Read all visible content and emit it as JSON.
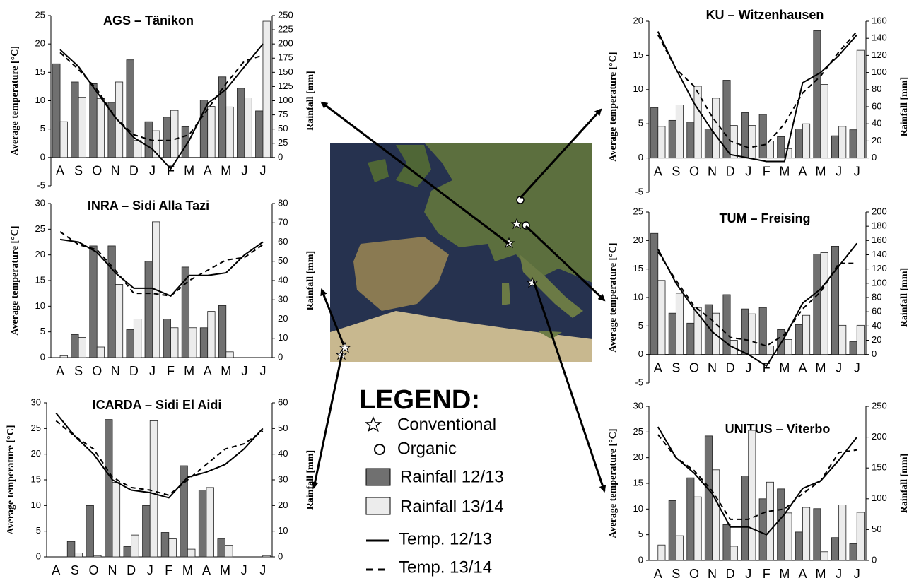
{
  "chart_data": [
    {
      "type": "combo",
      "title": "AGS – Tänikon",
      "ylabel": "Average temperature [°C]",
      "y2label": "Rainfall [mm]",
      "categories": [
        "A",
        "S",
        "O",
        "N",
        "D",
        "J",
        "F",
        "M",
        "A",
        "M",
        "J",
        "J"
      ],
      "ylim": [
        -5,
        25
      ],
      "yticks": [
        -5,
        0,
        5,
        10,
        15,
        20,
        25
      ],
      "y2lim": [
        -50,
        250
      ],
      "y2ticks": [
        0,
        25,
        50,
        75,
        100,
        125,
        150,
        175,
        200,
        225,
        250
      ],
      "series": [
        {
          "color": "#707070",
          "style": "bar",
          "axis": "y2",
          "values": [
            165,
            133,
            130,
            97,
            172,
            63,
            71,
            54,
            101,
            142,
            122,
            82
          ]
        },
        {
          "color": "#ececec",
          "style": "bar",
          "axis": "y2",
          "values": [
            63,
            106,
            104,
            133,
            30,
            47,
            83,
            0,
            90,
            89,
            105,
            240
          ]
        },
        {
          "color": "#000000",
          "style": "solid",
          "values": [
            19,
            16,
            11.5,
            7,
            3.5,
            1.5,
            -2,
            3,
            9.5,
            12,
            16,
            20
          ]
        },
        {
          "color": "#000000",
          "style": "dashed",
          "values": [
            18.5,
            15.5,
            12,
            7,
            4,
            3,
            3,
            4,
            8.5,
            13,
            17,
            18
          ]
        }
      ]
    },
    {
      "type": "combo",
      "title": "INRA – Sidi Alla Tazi",
      "ylabel": "Average temperature [°C]",
      "y2label": "Rainfall [mm]",
      "categories": [
        "A",
        "S",
        "O",
        "N",
        "D",
        "J",
        "F",
        "M",
        "A",
        "M",
        "J",
        "J"
      ],
      "ylim": [
        0,
        30
      ],
      "yticks": [
        0,
        5,
        10,
        15,
        20,
        25,
        30
      ],
      "y2lim": [
        0,
        80
      ],
      "y2ticks": [
        0,
        10,
        20,
        30,
        40,
        50,
        60,
        70,
        80
      ],
      "series": [
        {
          "color": "#707070",
          "style": "bar",
          "axis": "y2",
          "values": [
            0,
            12,
            58,
            58,
            14.5,
            50,
            20,
            47,
            15.5,
            27,
            0,
            0
          ]
        },
        {
          "color": "#ececec",
          "style": "bar",
          "axis": "y2",
          "values": [
            1,
            10.5,
            5.5,
            38,
            20,
            70.5,
            15.5,
            15.5,
            24,
            3,
            0,
            0
          ]
        },
        {
          "color": "#000000",
          "style": "solid",
          "values": [
            23,
            22.5,
            20.5,
            16.5,
            13.5,
            13.5,
            12,
            16,
            16,
            16.5,
            20,
            22.5
          ]
        },
        {
          "color": "#000000",
          "style": "dashed",
          "values": [
            24.5,
            22,
            21,
            17,
            12.5,
            12.5,
            12,
            15,
            17,
            19,
            19.5,
            22
          ]
        }
      ]
    },
    {
      "type": "combo",
      "title": "ICARDA – Sidi El Aidi",
      "ylabel": "Average temperature [°C]",
      "y2label": "Rainfall [mm]",
      "categories": [
        "A",
        "S",
        "O",
        "N",
        "D",
        "J",
        "F",
        "M",
        "A",
        "M",
        "J",
        "J"
      ],
      "ylim": [
        0,
        30
      ],
      "yticks": [
        0,
        5,
        10,
        15,
        20,
        25,
        30
      ],
      "y2lim": [
        0,
        60
      ],
      "y2ticks": [
        0,
        10,
        20,
        30,
        40,
        50,
        60
      ],
      "series": [
        {
          "color": "#707070",
          "style": "bar",
          "axis": "y2",
          "values": [
            0,
            6,
            20,
            53.5,
            4,
            20,
            9.5,
            35.5,
            26,
            7,
            0,
            0
          ]
        },
        {
          "color": "#ececec",
          "style": "bar",
          "axis": "y2",
          "values": [
            0,
            1.5,
            0.5,
            29,
            8.5,
            53,
            7,
            3,
            27,
            4.5,
            0,
            0.5
          ]
        },
        {
          "color": "#000000",
          "style": "solid",
          "values": [
            28,
            23.5,
            20,
            15,
            13,
            12.5,
            11.5,
            15.5,
            16.5,
            18,
            21,
            25
          ]
        },
        {
          "color": "#000000",
          "style": "dashed",
          "values": [
            26.5,
            23.5,
            21,
            15.5,
            13.5,
            13,
            12,
            15,
            18,
            21,
            22,
            24.5
          ]
        }
      ]
    },
    {
      "type": "combo",
      "title": "KU – Witzenhausen",
      "ylabel": "Average temperature [°C]",
      "y2label": "Rainfall [mm]",
      "categories": [
        "A",
        "S",
        "O",
        "N",
        "D",
        "J",
        "F",
        "M",
        "A",
        "M",
        "J",
        "J"
      ],
      "ylim": [
        -5,
        20
      ],
      "yticks": [
        -5,
        0,
        5,
        10,
        15,
        20
      ],
      "y2lim": [
        -40,
        160
      ],
      "y2ticks": [
        0,
        20,
        40,
        60,
        80,
        100,
        120,
        140,
        160
      ],
      "series": [
        {
          "color": "#707070",
          "style": "bar",
          "axis": "y2",
          "values": [
            59,
            44,
            42,
            34,
            91,
            53,
            51,
            25,
            34,
            149,
            26,
            33
          ]
        },
        {
          "color": "#ececec",
          "style": "bar",
          "axis": "y2",
          "values": [
            37,
            62,
            84,
            70,
            38,
            38,
            20,
            11,
            40,
            86,
            37,
            126
          ]
        },
        {
          "color": "#000000",
          "style": "solid",
          "values": [
            18.5,
            13,
            8,
            4,
            0.5,
            0,
            -0.5,
            -0.5,
            11,
            12.5,
            15,
            18
          ]
        },
        {
          "color": "#000000",
          "style": "dashed",
          "values": [
            18,
            13,
            10.5,
            6,
            2.5,
            1.5,
            2,
            5,
            9.5,
            12,
            15.5,
            18.5
          ]
        }
      ]
    },
    {
      "type": "combo",
      "title": "TUM – Freising",
      "ylabel": "Average temperature [°C]",
      "y2label": "Rainfall [mm]",
      "categories": [
        "A",
        "S",
        "O",
        "N",
        "D",
        "J",
        "F",
        "M",
        "A",
        "M",
        "J",
        "J"
      ],
      "ylim": [
        -5,
        25
      ],
      "yticks": [
        -5,
        0,
        5,
        10,
        15,
        20,
        25
      ],
      "y2lim": [
        -40,
        200
      ],
      "y2ticks": [
        0,
        20,
        40,
        60,
        80,
        100,
        120,
        140,
        160,
        180,
        200
      ],
      "series": [
        {
          "color": "#707070",
          "style": "bar",
          "axis": "y2",
          "values": [
            170,
            58,
            44,
            70,
            84,
            64,
            66,
            35,
            42,
            141,
            152,
            18
          ]
        },
        {
          "color": "#ececec",
          "style": "bar",
          "axis": "y2",
          "values": [
            104,
            86,
            66,
            58,
            20,
            57,
            12,
            21,
            55,
            143,
            41,
            41
          ]
        },
        {
          "color": "#000000",
          "style": "solid",
          "values": [
            18.5,
            12.5,
            8,
            4,
            1.5,
            0,
            -2,
            3,
            9,
            11.5,
            15.5,
            19.5
          ]
        },
        {
          "color": "#000000",
          "style": "dashed",
          "values": [
            18,
            13,
            8.5,
            6,
            3,
            2.5,
            1.5,
            3.5,
            8,
            11,
            16,
            16
          ]
        }
      ]
    },
    {
      "type": "combo",
      "title": "UNITUS – Viterbo",
      "ylabel": "Average temperature [°C]",
      "y2label": "Rainfall [mm]",
      "categories": [
        "A",
        "S",
        "O",
        "N",
        "D",
        "J",
        "F",
        "M",
        "A",
        "M",
        "J",
        "J"
      ],
      "ylim": [
        0,
        30
      ],
      "yticks": [
        0,
        5,
        10,
        15,
        20,
        25,
        30
      ],
      "y2lim": [
        0,
        250
      ],
      "y2ticks": [
        0,
        50,
        100,
        150,
        200,
        250
      ],
      "series": [
        {
          "color": "#707070",
          "style": "bar",
          "axis": "y2",
          "values": [
            0,
            97,
            134,
            202,
            58,
            137,
            100,
            116,
            46,
            84,
            37,
            27
          ]
        },
        {
          "color": "#ececec",
          "style": "bar",
          "axis": "y2",
          "values": [
            25,
            40,
            103,
            147,
            23,
            211,
            127,
            77,
            86,
            14,
            90,
            78
          ]
        },
        {
          "color": "#000000",
          "style": "solid",
          "values": [
            26,
            20,
            17,
            13,
            6.5,
            6.5,
            5,
            9,
            14,
            15.5,
            19.5,
            24
          ]
        },
        {
          "color": "#000000",
          "style": "dashed",
          "values": [
            24.5,
            20,
            17.5,
            13.5,
            8,
            8,
            9.5,
            10,
            13,
            15.5,
            21,
            21.5
          ]
        }
      ]
    }
  ],
  "legend": {
    "title": "LEGEND:",
    "items": [
      "Conventional",
      "Organic",
      "Rainfall 12/13",
      "Rainfall 13/14",
      "Temp. 12/13",
      "Temp. 13/14"
    ]
  }
}
